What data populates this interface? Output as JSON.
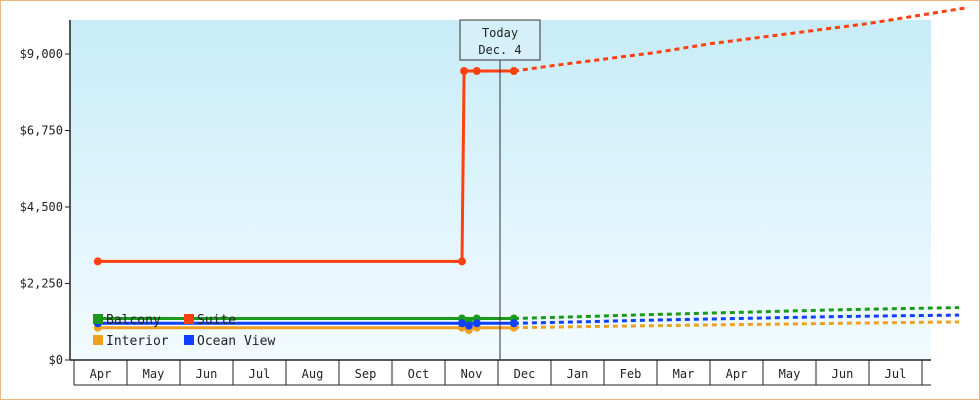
{
  "chart_data": {
    "type": "line",
    "title": "",
    "xlabel": "",
    "ylabel": "",
    "ylim": [
      0,
      10000
    ],
    "grid": false,
    "x_ticks": [
      "Apr",
      "May",
      "Jun",
      "Jul",
      "Aug",
      "Sep",
      "Oct",
      "Nov",
      "Dec",
      "Jan",
      "Feb",
      "Mar",
      "Apr",
      "May",
      "Jun",
      "Jul"
    ],
    "y_ticks": [
      {
        "value": 0,
        "label": "$0"
      },
      {
        "value": 2250,
        "label": "$2,250"
      },
      {
        "value": 4500,
        "label": "$4,500"
      },
      {
        "value": 6750,
        "label": "$6,750"
      },
      {
        "value": 9000,
        "label": "$9,000"
      }
    ],
    "today_marker": {
      "line1": "Today",
      "line2": "Dec. 4",
      "x": 7.8
    },
    "legend_position": "bottom-left",
    "series": [
      {
        "name": "Balcony",
        "color": "#1a9a1a",
        "actual": [
          [
            -0.05,
            1220
          ],
          [
            6.82,
            1220
          ],
          [
            7.1,
            1220
          ],
          [
            7.8,
            1220
          ]
        ],
        "forecast": [
          [
            7.8,
            1220
          ],
          [
            9,
            1270
          ],
          [
            10,
            1320
          ],
          [
            11,
            1360
          ],
          [
            12,
            1400
          ],
          [
            13,
            1440
          ],
          [
            14,
            1480
          ],
          [
            15,
            1510
          ],
          [
            16.2,
            1540
          ]
        ]
      },
      {
        "name": "Suite",
        "color": "#ff4010",
        "actual": [
          [
            -0.05,
            2900
          ],
          [
            6.82,
            2900
          ],
          [
            6.86,
            8500
          ],
          [
            7.1,
            8500
          ],
          [
            7.8,
            8500
          ]
        ],
        "forecast": [
          [
            7.8,
            8500
          ],
          [
            8.5,
            8650
          ],
          [
            9.5,
            8850
          ],
          [
            10.5,
            9050
          ],
          [
            11.5,
            9300
          ],
          [
            12.5,
            9500
          ],
          [
            13.5,
            9700
          ],
          [
            14.5,
            9900
          ],
          [
            15.5,
            10150
          ],
          [
            16.3,
            10350
          ]
        ]
      },
      {
        "name": "Interior",
        "color": "#f0a020",
        "actual": [
          [
            -0.05,
            950
          ],
          [
            6.82,
            950
          ],
          [
            7.1,
            950
          ],
          [
            7.8,
            950
          ]
        ],
        "forecast": [
          [
            7.8,
            950
          ],
          [
            9,
            980
          ],
          [
            10,
            1000
          ],
          [
            11,
            1020
          ],
          [
            12,
            1040
          ],
          [
            13,
            1060
          ],
          [
            14,
            1080
          ],
          [
            15,
            1100
          ],
          [
            16.2,
            1120
          ]
        ]
      },
      {
        "name": "Ocean View",
        "color": "#1040ff",
        "actual": [
          [
            -0.05,
            1080
          ],
          [
            6.82,
            1080
          ],
          [
            7.1,
            1080
          ],
          [
            7.8,
            1080
          ]
        ],
        "forecast": [
          [
            7.8,
            1080
          ],
          [
            9,
            1120
          ],
          [
            10,
            1160
          ],
          [
            11,
            1190
          ],
          [
            12,
            1220
          ],
          [
            13,
            1250
          ],
          [
            14,
            1280
          ],
          [
            15,
            1300
          ],
          [
            16.2,
            1320
          ]
        ]
      }
    ],
    "markers": {
      "Balcony": [
        [
          -0.05,
          1220
        ],
        [
          6.82,
          1220
        ],
        [
          6.95,
          1150
        ],
        [
          7.1,
          1220
        ],
        [
          7.8,
          1220
        ]
      ],
      "Suite": [
        [
          -0.05,
          2900
        ],
        [
          6.82,
          2900
        ],
        [
          6.86,
          8500
        ],
        [
          7.1,
          8500
        ],
        [
          7.8,
          8500
        ]
      ],
      "Interior": [
        [
          -0.05,
          950
        ],
        [
          6.82,
          950
        ],
        [
          6.95,
          880
        ],
        [
          7.1,
          950
        ],
        [
          7.8,
          950
        ]
      ],
      "Ocean View": [
        [
          -0.05,
          1080
        ],
        [
          6.82,
          1080
        ],
        [
          6.95,
          1010
        ],
        [
          7.1,
          1080
        ],
        [
          7.8,
          1080
        ]
      ]
    }
  }
}
